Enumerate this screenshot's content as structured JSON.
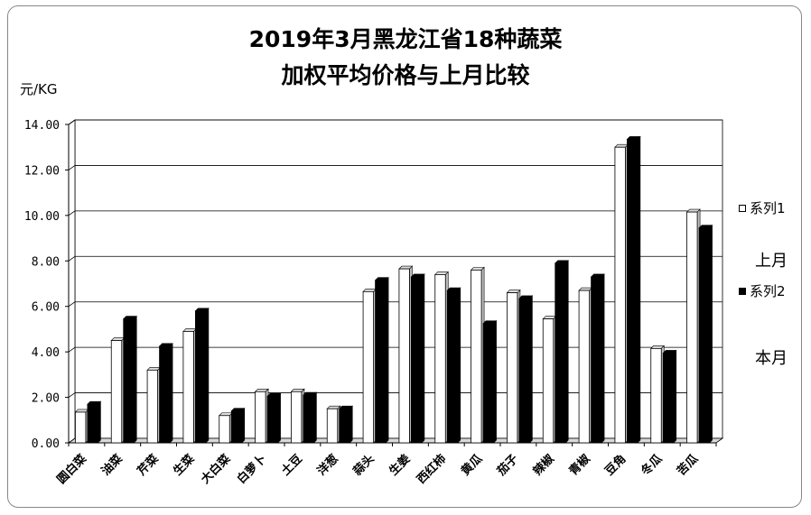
{
  "chart_data": {
    "type": "bar",
    "title": "2019年3月黑龙江省18种蔬菜",
    "subtitle": "加权平均价格与上月比较",
    "ylabel": "元/KG",
    "ylim": [
      0,
      14
    ],
    "yticks": [
      "0.00",
      "2.00",
      "4.00",
      "6.00",
      "8.00",
      "10.00",
      "12.00",
      "14.00"
    ],
    "grid": true,
    "legend_position": "right",
    "categories": [
      "圆白菜",
      "油菜",
      "芹菜",
      "生菜",
      "大白菜",
      "白萝卜",
      "土豆",
      "洋葱",
      "蒜头",
      "生姜",
      "西红柿",
      "黄瓜",
      "茄子",
      "辣椒",
      "青椒",
      "豆角",
      "冬瓜",
      "苦瓜"
    ],
    "series": [
      {
        "name": "系列1",
        "color": "#ffffff",
        "values": [
          1.35,
          4.5,
          3.2,
          4.9,
          1.2,
          2.25,
          2.25,
          1.5,
          6.65,
          7.65,
          7.4,
          7.6,
          6.6,
          5.45,
          6.7,
          13.0,
          4.15,
          10.15
        ]
      },
      {
        "name": "系列2",
        "color": "#000000",
        "values": [
          1.7,
          5.45,
          4.25,
          5.8,
          1.4,
          2.05,
          2.1,
          1.5,
          7.15,
          7.3,
          6.7,
          5.25,
          6.35,
          7.9,
          7.3,
          13.35,
          3.95,
          9.45
        ]
      }
    ],
    "side_notes": [
      "上月",
      "本月"
    ]
  }
}
